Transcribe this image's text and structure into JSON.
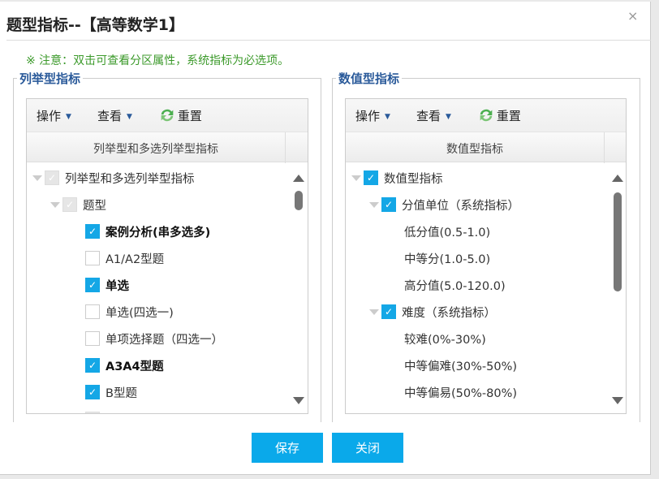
{
  "dialog": {
    "title": "题型指标--【高等数学1】",
    "notice": "※ 注意：双击可查看分区属性，系统指标为必选项。",
    "close_icon": "×"
  },
  "left": {
    "legend": "列举型指标",
    "toolbar": {
      "ops": "操作",
      "view": "查看",
      "reset": "重置"
    },
    "column": "列举型和多选列举型指标",
    "items": [
      {
        "label": "列举型和多选列举型指标",
        "level": 0,
        "state": "disabled-checked",
        "expand": true,
        "bold": false
      },
      {
        "label": "题型",
        "level": 1,
        "state": "disabled-checked",
        "expand": true,
        "bold": false
      },
      {
        "label": "案例分析(串多选多)",
        "level": 2,
        "state": "checked",
        "bold": true
      },
      {
        "label": "A1/A2型题",
        "level": 2,
        "state": "unchecked",
        "bold": false
      },
      {
        "label": "单选",
        "level": 2,
        "state": "checked",
        "bold": true
      },
      {
        "label": "单选(四选一)",
        "level": 2,
        "state": "unchecked",
        "bold": false
      },
      {
        "label": "单项选择题（四选一）",
        "level": 2,
        "state": "unchecked",
        "bold": false
      },
      {
        "label": "A3A4型题",
        "level": 2,
        "state": "checked",
        "bold": true
      },
      {
        "label": "B型题",
        "level": 2,
        "state": "checked",
        "bold": false
      }
    ]
  },
  "right": {
    "legend": "数值型指标",
    "toolbar": {
      "ops": "操作",
      "view": "查看",
      "reset": "重置"
    },
    "column": "数值型指标",
    "items": [
      {
        "label": "数值型指标",
        "level": 0,
        "state": "checked",
        "expand": true
      },
      {
        "label": "分值单位（系统指标）",
        "level": 1,
        "state": "checked",
        "expand": true
      },
      {
        "label": "低分值(0.5-1.0)",
        "level": 2,
        "state": "none"
      },
      {
        "label": "中等分(1.0-5.0)",
        "level": 2,
        "state": "none"
      },
      {
        "label": "高分值(5.0-120.0)",
        "level": 2,
        "state": "none"
      },
      {
        "label": "难度（系统指标）",
        "level": 1,
        "state": "checked",
        "expand": true
      },
      {
        "label": "较难(0%-30%)",
        "level": 2,
        "state": "none"
      },
      {
        "label": "中等偏难(30%-50%)",
        "level": 2,
        "state": "none"
      },
      {
        "label": "中等偏易(50%-80%)",
        "level": 2,
        "state": "none"
      }
    ]
  },
  "buttons": {
    "save": "保存",
    "close": "关闭"
  },
  "colors": {
    "accent": "#0aa9ea",
    "notice": "#3c9a2b",
    "legend": "#2a5a9a"
  }
}
